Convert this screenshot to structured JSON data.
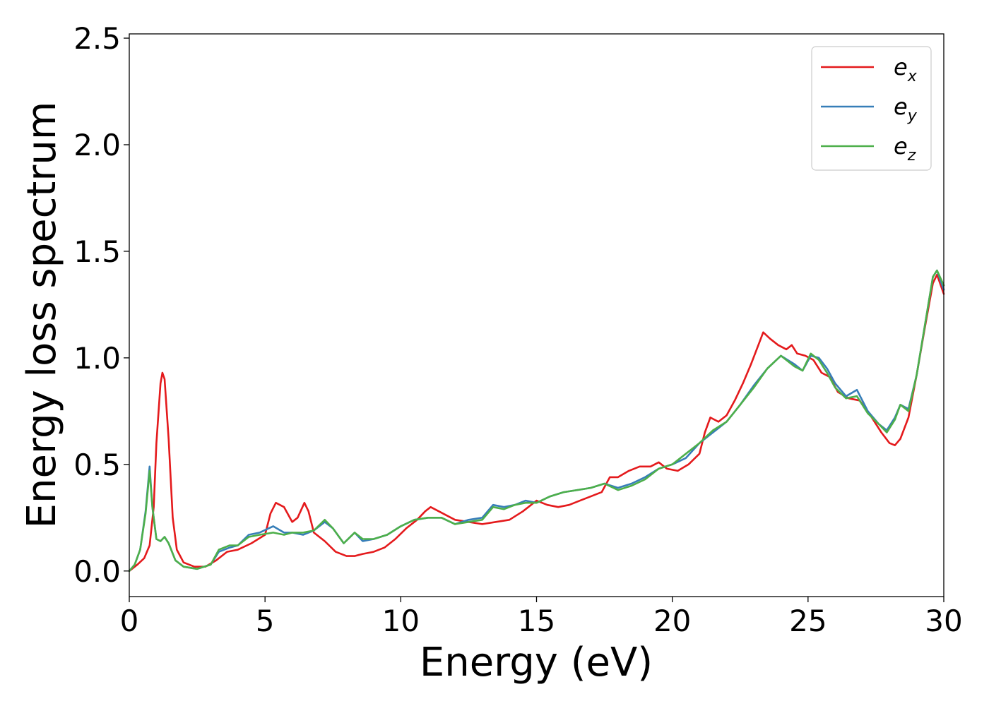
{
  "chart_data": {
    "type": "line",
    "xlabel": "Energy (eV)",
    "ylabel": "Energy loss spectrum",
    "xlim": [
      0,
      30
    ],
    "ylim": [
      -0.12,
      2.52
    ],
    "xticks": [
      0,
      5,
      10,
      15,
      20,
      25,
      30
    ],
    "xtick_labels": [
      "0",
      "5",
      "10",
      "15",
      "20",
      "25",
      "30"
    ],
    "yticks": [
      0.0,
      0.5,
      1.0,
      1.5,
      2.0,
      2.5
    ],
    "ytick_labels": [
      "0.0",
      "0.5",
      "1.0",
      "1.5",
      "2.0",
      "2.5"
    ],
    "grid": false,
    "legend_position": "top-right",
    "series": [
      {
        "name": "e_x",
        "legend_base": "e",
        "legend_sub": "x",
        "color": "#e41a1c",
        "points": [
          [
            0,
            0.0
          ],
          [
            0.3,
            0.03
          ],
          [
            0.55,
            0.06
          ],
          [
            0.75,
            0.12
          ],
          [
            0.9,
            0.3
          ],
          [
            1.0,
            0.6
          ],
          [
            1.15,
            0.88
          ],
          [
            1.22,
            0.93
          ],
          [
            1.3,
            0.9
          ],
          [
            1.45,
            0.62
          ],
          [
            1.6,
            0.25
          ],
          [
            1.75,
            0.1
          ],
          [
            2.0,
            0.04
          ],
          [
            2.4,
            0.02
          ],
          [
            2.8,
            0.02
          ],
          [
            3.2,
            0.05
          ],
          [
            3.6,
            0.09
          ],
          [
            4.0,
            0.1
          ],
          [
            4.5,
            0.13
          ],
          [
            5.0,
            0.17
          ],
          [
            5.2,
            0.27
          ],
          [
            5.4,
            0.32
          ],
          [
            5.7,
            0.3
          ],
          [
            6.0,
            0.23
          ],
          [
            6.2,
            0.25
          ],
          [
            6.45,
            0.32
          ],
          [
            6.6,
            0.28
          ],
          [
            6.8,
            0.18
          ],
          [
            7.2,
            0.14
          ],
          [
            7.6,
            0.09
          ],
          [
            8.0,
            0.07
          ],
          [
            8.3,
            0.07
          ],
          [
            8.6,
            0.08
          ],
          [
            9.0,
            0.09
          ],
          [
            9.4,
            0.11
          ],
          [
            9.8,
            0.15
          ],
          [
            10.2,
            0.2
          ],
          [
            10.6,
            0.24
          ],
          [
            10.9,
            0.28
          ],
          [
            11.1,
            0.3
          ],
          [
            11.4,
            0.28
          ],
          [
            11.7,
            0.26
          ],
          [
            12.0,
            0.24
          ],
          [
            12.5,
            0.23
          ],
          [
            13.0,
            0.22
          ],
          [
            13.5,
            0.23
          ],
          [
            14.0,
            0.24
          ],
          [
            14.5,
            0.28
          ],
          [
            15.0,
            0.33
          ],
          [
            15.4,
            0.31
          ],
          [
            15.8,
            0.3
          ],
          [
            16.2,
            0.31
          ],
          [
            16.6,
            0.33
          ],
          [
            17.0,
            0.35
          ],
          [
            17.4,
            0.37
          ],
          [
            17.7,
            0.44
          ],
          [
            18.0,
            0.44
          ],
          [
            18.4,
            0.47
          ],
          [
            18.8,
            0.49
          ],
          [
            19.2,
            0.49
          ],
          [
            19.5,
            0.51
          ],
          [
            19.8,
            0.48
          ],
          [
            20.2,
            0.47
          ],
          [
            20.6,
            0.5
          ],
          [
            21.0,
            0.55
          ],
          [
            21.2,
            0.65
          ],
          [
            21.4,
            0.72
          ],
          [
            21.7,
            0.7
          ],
          [
            22.0,
            0.73
          ],
          [
            22.3,
            0.8
          ],
          [
            22.6,
            0.88
          ],
          [
            22.9,
            0.97
          ],
          [
            23.2,
            1.07
          ],
          [
            23.35,
            1.12
          ],
          [
            23.6,
            1.09
          ],
          [
            23.9,
            1.06
          ],
          [
            24.2,
            1.04
          ],
          [
            24.4,
            1.06
          ],
          [
            24.6,
            1.02
          ],
          [
            24.9,
            1.01
          ],
          [
            25.2,
            0.99
          ],
          [
            25.5,
            0.93
          ],
          [
            25.8,
            0.91
          ],
          [
            26.1,
            0.84
          ],
          [
            26.5,
            0.81
          ],
          [
            26.9,
            0.8
          ],
          [
            27.3,
            0.73
          ],
          [
            27.7,
            0.65
          ],
          [
            28.0,
            0.6
          ],
          [
            28.2,
            0.59
          ],
          [
            28.4,
            0.62
          ],
          [
            28.7,
            0.72
          ],
          [
            29.0,
            0.92
          ],
          [
            29.3,
            1.14
          ],
          [
            29.6,
            1.35
          ],
          [
            29.75,
            1.39
          ],
          [
            30.0,
            1.3
          ]
        ]
      },
      {
        "name": "e_y",
        "legend_base": "e",
        "legend_sub": "y",
        "color": "#377eb8",
        "points": [
          [
            0,
            0.0
          ],
          [
            0.2,
            0.03
          ],
          [
            0.4,
            0.1
          ],
          [
            0.6,
            0.28
          ],
          [
            0.75,
            0.49
          ],
          [
            0.85,
            0.3
          ],
          [
            1.0,
            0.15
          ],
          [
            1.15,
            0.14
          ],
          [
            1.3,
            0.16
          ],
          [
            1.45,
            0.13
          ],
          [
            1.7,
            0.05
          ],
          [
            2.0,
            0.02
          ],
          [
            2.5,
            0.01
          ],
          [
            3.0,
            0.03
          ],
          [
            3.3,
            0.09
          ],
          [
            3.7,
            0.11
          ],
          [
            4.0,
            0.12
          ],
          [
            4.4,
            0.17
          ],
          [
            4.8,
            0.18
          ],
          [
            5.3,
            0.21
          ],
          [
            5.7,
            0.18
          ],
          [
            6.0,
            0.18
          ],
          [
            6.4,
            0.17
          ],
          [
            6.8,
            0.19
          ],
          [
            7.2,
            0.23
          ],
          [
            7.5,
            0.2
          ],
          [
            7.9,
            0.13
          ],
          [
            8.3,
            0.18
          ],
          [
            8.6,
            0.14
          ],
          [
            9.0,
            0.15
          ],
          [
            9.5,
            0.17
          ],
          [
            10.0,
            0.21
          ],
          [
            10.5,
            0.24
          ],
          [
            11.0,
            0.25
          ],
          [
            11.5,
            0.25
          ],
          [
            12.0,
            0.22
          ],
          [
            12.5,
            0.24
          ],
          [
            13.0,
            0.25
          ],
          [
            13.4,
            0.31
          ],
          [
            13.8,
            0.3
          ],
          [
            14.2,
            0.31
          ],
          [
            14.6,
            0.33
          ],
          [
            15.0,
            0.32
          ],
          [
            15.5,
            0.35
          ],
          [
            16.0,
            0.37
          ],
          [
            16.5,
            0.38
          ],
          [
            17.0,
            0.39
          ],
          [
            17.5,
            0.41
          ],
          [
            18.0,
            0.39
          ],
          [
            18.5,
            0.41
          ],
          [
            19.0,
            0.44
          ],
          [
            19.5,
            0.48
          ],
          [
            20.0,
            0.5
          ],
          [
            20.5,
            0.53
          ],
          [
            21.0,
            0.6
          ],
          [
            21.5,
            0.65
          ],
          [
            22.0,
            0.7
          ],
          [
            22.5,
            0.78
          ],
          [
            23.0,
            0.87
          ],
          [
            23.5,
            0.95
          ],
          [
            24.0,
            1.01
          ],
          [
            24.5,
            0.97
          ],
          [
            24.8,
            0.94
          ],
          [
            25.1,
            1.01
          ],
          [
            25.4,
            1.0
          ],
          [
            25.7,
            0.95
          ],
          [
            26.0,
            0.88
          ],
          [
            26.4,
            0.82
          ],
          [
            26.8,
            0.85
          ],
          [
            27.2,
            0.75
          ],
          [
            27.6,
            0.69
          ],
          [
            27.9,
            0.66
          ],
          [
            28.2,
            0.72
          ],
          [
            28.4,
            0.78
          ],
          [
            28.7,
            0.76
          ],
          [
            29.0,
            0.92
          ],
          [
            29.3,
            1.15
          ],
          [
            29.6,
            1.38
          ],
          [
            29.75,
            1.41
          ],
          [
            30.0,
            1.32
          ]
        ]
      },
      {
        "name": "e_z",
        "legend_base": "e",
        "legend_sub": "z",
        "color": "#4daf4a",
        "points": [
          [
            0,
            0.0
          ],
          [
            0.2,
            0.03
          ],
          [
            0.4,
            0.1
          ],
          [
            0.6,
            0.27
          ],
          [
            0.75,
            0.47
          ],
          [
            0.85,
            0.3
          ],
          [
            1.0,
            0.15
          ],
          [
            1.15,
            0.14
          ],
          [
            1.3,
            0.16
          ],
          [
            1.45,
            0.13
          ],
          [
            1.7,
            0.05
          ],
          [
            2.0,
            0.02
          ],
          [
            2.5,
            0.01
          ],
          [
            3.0,
            0.03
          ],
          [
            3.3,
            0.1
          ],
          [
            3.7,
            0.12
          ],
          [
            4.0,
            0.12
          ],
          [
            4.4,
            0.16
          ],
          [
            4.8,
            0.17
          ],
          [
            5.3,
            0.18
          ],
          [
            5.7,
            0.17
          ],
          [
            6.0,
            0.18
          ],
          [
            6.4,
            0.18
          ],
          [
            6.8,
            0.19
          ],
          [
            7.2,
            0.24
          ],
          [
            7.5,
            0.2
          ],
          [
            7.9,
            0.13
          ],
          [
            8.3,
            0.18
          ],
          [
            8.6,
            0.15
          ],
          [
            9.0,
            0.15
          ],
          [
            9.5,
            0.17
          ],
          [
            10.0,
            0.21
          ],
          [
            10.5,
            0.24
          ],
          [
            11.0,
            0.25
          ],
          [
            11.5,
            0.25
          ],
          [
            12.0,
            0.22
          ],
          [
            12.5,
            0.23
          ],
          [
            13.0,
            0.24
          ],
          [
            13.4,
            0.3
          ],
          [
            13.8,
            0.29
          ],
          [
            14.2,
            0.31
          ],
          [
            14.6,
            0.32
          ],
          [
            15.0,
            0.32
          ],
          [
            15.5,
            0.35
          ],
          [
            16.0,
            0.37
          ],
          [
            16.5,
            0.38
          ],
          [
            17.0,
            0.39
          ],
          [
            17.5,
            0.41
          ],
          [
            18.0,
            0.38
          ],
          [
            18.5,
            0.4
          ],
          [
            19.0,
            0.43
          ],
          [
            19.5,
            0.48
          ],
          [
            20.0,
            0.5
          ],
          [
            20.5,
            0.55
          ],
          [
            21.0,
            0.6
          ],
          [
            21.5,
            0.66
          ],
          [
            22.0,
            0.7
          ],
          [
            22.5,
            0.78
          ],
          [
            23.0,
            0.86
          ],
          [
            23.5,
            0.95
          ],
          [
            24.0,
            1.01
          ],
          [
            24.5,
            0.96
          ],
          [
            24.8,
            0.94
          ],
          [
            25.1,
            1.02
          ],
          [
            25.4,
            0.99
          ],
          [
            25.7,
            0.93
          ],
          [
            26.0,
            0.86
          ],
          [
            26.4,
            0.81
          ],
          [
            26.8,
            0.82
          ],
          [
            27.2,
            0.74
          ],
          [
            27.6,
            0.69
          ],
          [
            27.9,
            0.65
          ],
          [
            28.2,
            0.71
          ],
          [
            28.4,
            0.78
          ],
          [
            28.7,
            0.75
          ],
          [
            29.0,
            0.92
          ],
          [
            29.3,
            1.15
          ],
          [
            29.6,
            1.38
          ],
          [
            29.75,
            1.41
          ],
          [
            30.0,
            1.34
          ]
        ]
      }
    ]
  }
}
